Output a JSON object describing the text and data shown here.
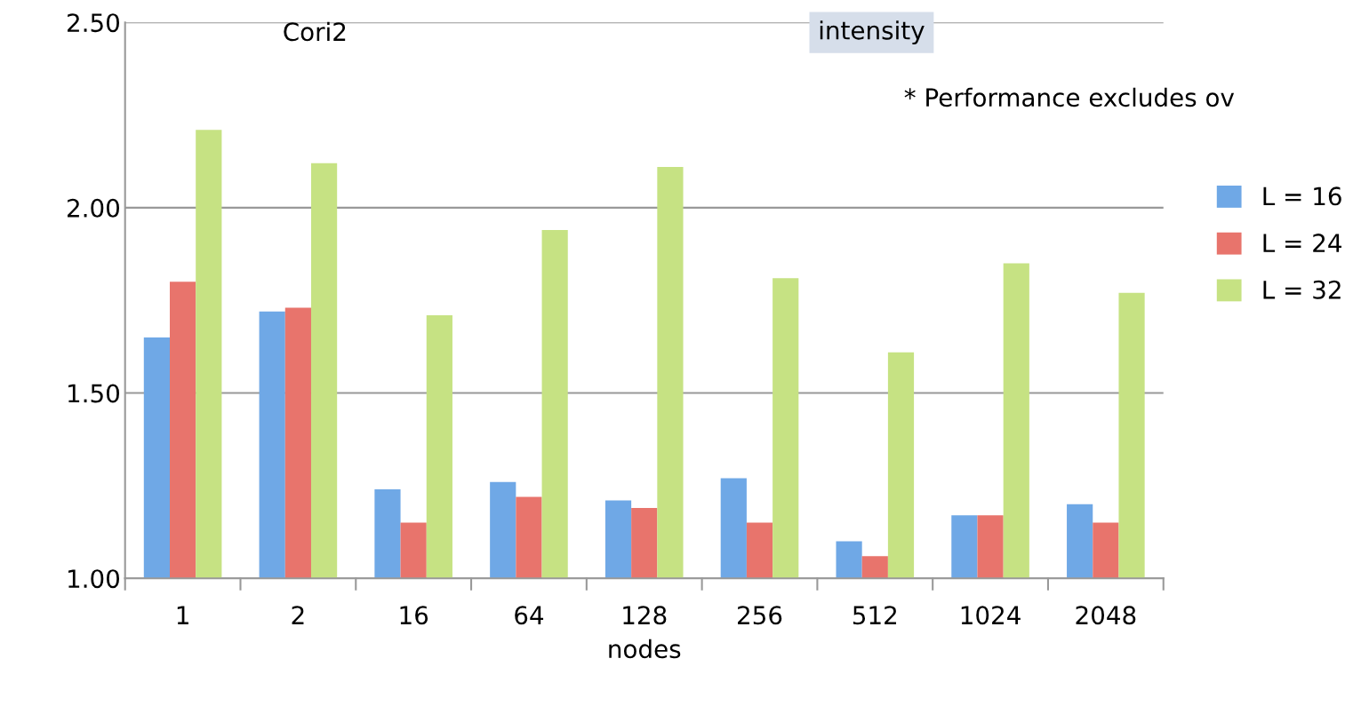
{
  "chart_data": {
    "type": "bar",
    "xlabel": "nodes",
    "categories": [
      "1",
      "2",
      "16",
      "64",
      "128",
      "256",
      "512",
      "1024",
      "2048"
    ],
    "series": [
      {
        "name": "L = 16",
        "color": "#6fa8e6",
        "values": [
          1.65,
          1.72,
          1.24,
          1.26,
          1.21,
          1.27,
          1.1,
          1.17,
          1.2
        ]
      },
      {
        "name": "L = 24",
        "color": "#e8746c",
        "values": [
          1.8,
          1.73,
          1.15,
          1.22,
          1.19,
          1.15,
          1.06,
          1.17,
          1.15
        ]
      },
      {
        "name": "L = 32",
        "color": "#c6e283",
        "values": [
          2.21,
          2.12,
          1.71,
          1.94,
          2.11,
          1.81,
          1.61,
          1.85,
          1.77
        ]
      }
    ],
    "ylim": [
      1.0,
      2.5
    ],
    "yticks": [
      {
        "value": 1.0,
        "label": "1.00"
      },
      {
        "value": 1.5,
        "label": "1.50"
      },
      {
        "value": 2.0,
        "label": "2.00"
      },
      {
        "value": 2.5,
        "label": "2.50"
      }
    ],
    "grid": "y",
    "legend": "right",
    "annotations": [
      "Cori2",
      "intensity",
      "* Performance excludes ov"
    ]
  }
}
